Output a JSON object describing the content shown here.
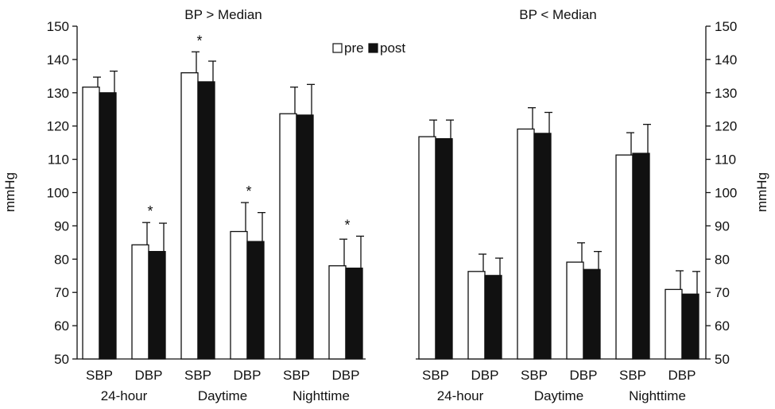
{
  "legend": {
    "pre": "pre",
    "post": "post"
  },
  "colors": {
    "pre": "#ffffff",
    "post": "#111111",
    "stroke": "#111111"
  },
  "chart_data": [
    {
      "type": "bar",
      "title": "BP > Median",
      "ylabel": "mmHg",
      "ylim": [
        50,
        150
      ],
      "yticks": [
        50,
        60,
        70,
        80,
        90,
        100,
        110,
        120,
        130,
        140,
        150
      ],
      "axis_side": "left",
      "categories": [
        "SBP",
        "DBP",
        "SBP",
        "DBP",
        "SBP",
        "DBP"
      ],
      "groups": [
        "24-hour",
        "Daytime",
        "Nighttime"
      ],
      "series": [
        {
          "name": "pre",
          "values": [
            131.7,
            84.3,
            136,
            88.3,
            123.7,
            78
          ],
          "errors": [
            3,
            6.7,
            6.3,
            8.7,
            8,
            8
          ]
        },
        {
          "name": "post",
          "values": [
            130,
            82.3,
            133.3,
            85.3,
            123.3,
            77.3
          ],
          "errors": [
            6.5,
            8.5,
            6.2,
            8.7,
            9.2,
            9.6
          ]
        }
      ],
      "annotations": [
        "",
        "*",
        "*",
        "*",
        "",
        "*"
      ]
    },
    {
      "type": "bar",
      "title": "BP < Median",
      "ylabel": "mmHg",
      "ylim": [
        50,
        150
      ],
      "yticks": [
        50,
        60,
        70,
        80,
        90,
        100,
        110,
        120,
        130,
        140,
        150
      ],
      "axis_side": "right",
      "categories": [
        "SBP",
        "DBP",
        "SBP",
        "DBP",
        "SBP",
        "DBP"
      ],
      "groups": [
        "24-hour",
        "Daytime",
        "Nighttime"
      ],
      "series": [
        {
          "name": "pre",
          "values": [
            116.8,
            76.3,
            119.1,
            79.1,
            111.3,
            70.9
          ],
          "errors": [
            5,
            5.2,
            6.4,
            5.8,
            6.7,
            5.6
          ]
        },
        {
          "name": "post",
          "values": [
            116.2,
            75.1,
            117.8,
            76.9,
            111.8,
            69.5
          ],
          "errors": [
            5.6,
            5.2,
            6.3,
            5.4,
            8.7,
            6.8
          ]
        }
      ],
      "annotations": [
        "",
        "",
        "",
        "",
        "",
        ""
      ]
    }
  ]
}
